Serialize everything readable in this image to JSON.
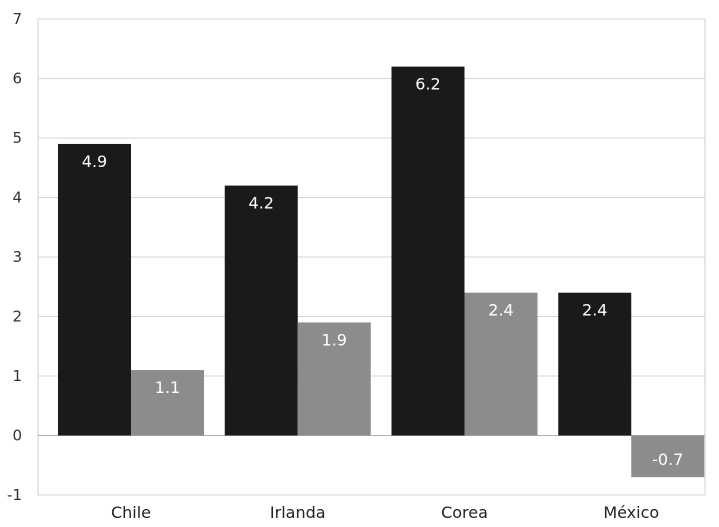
{
  "chart_data": {
    "type": "bar",
    "title": "",
    "xlabel": "",
    "ylabel": "",
    "categories": [
      "Chile",
      "Irlanda",
      "Corea",
      "México"
    ],
    "series": [
      {
        "values": [
          4.9,
          4.2,
          6.2,
          2.4
        ],
        "color": "#1a1a1a"
      },
      {
        "values": [
          1.1,
          1.9,
          2.4,
          -0.7
        ],
        "color": "#8c8c8c"
      }
    ],
    "data_labels": [
      [
        "4.9",
        "4.2",
        "6.2",
        "2.4"
      ],
      [
        "1.1",
        "1.9",
        "2.4",
        "-0.7"
      ]
    ],
    "ylim": [
      -1,
      7
    ],
    "yticks": [
      -1,
      0,
      1,
      2,
      3,
      4,
      5,
      6,
      7
    ],
    "grid": true,
    "legend": "none"
  }
}
